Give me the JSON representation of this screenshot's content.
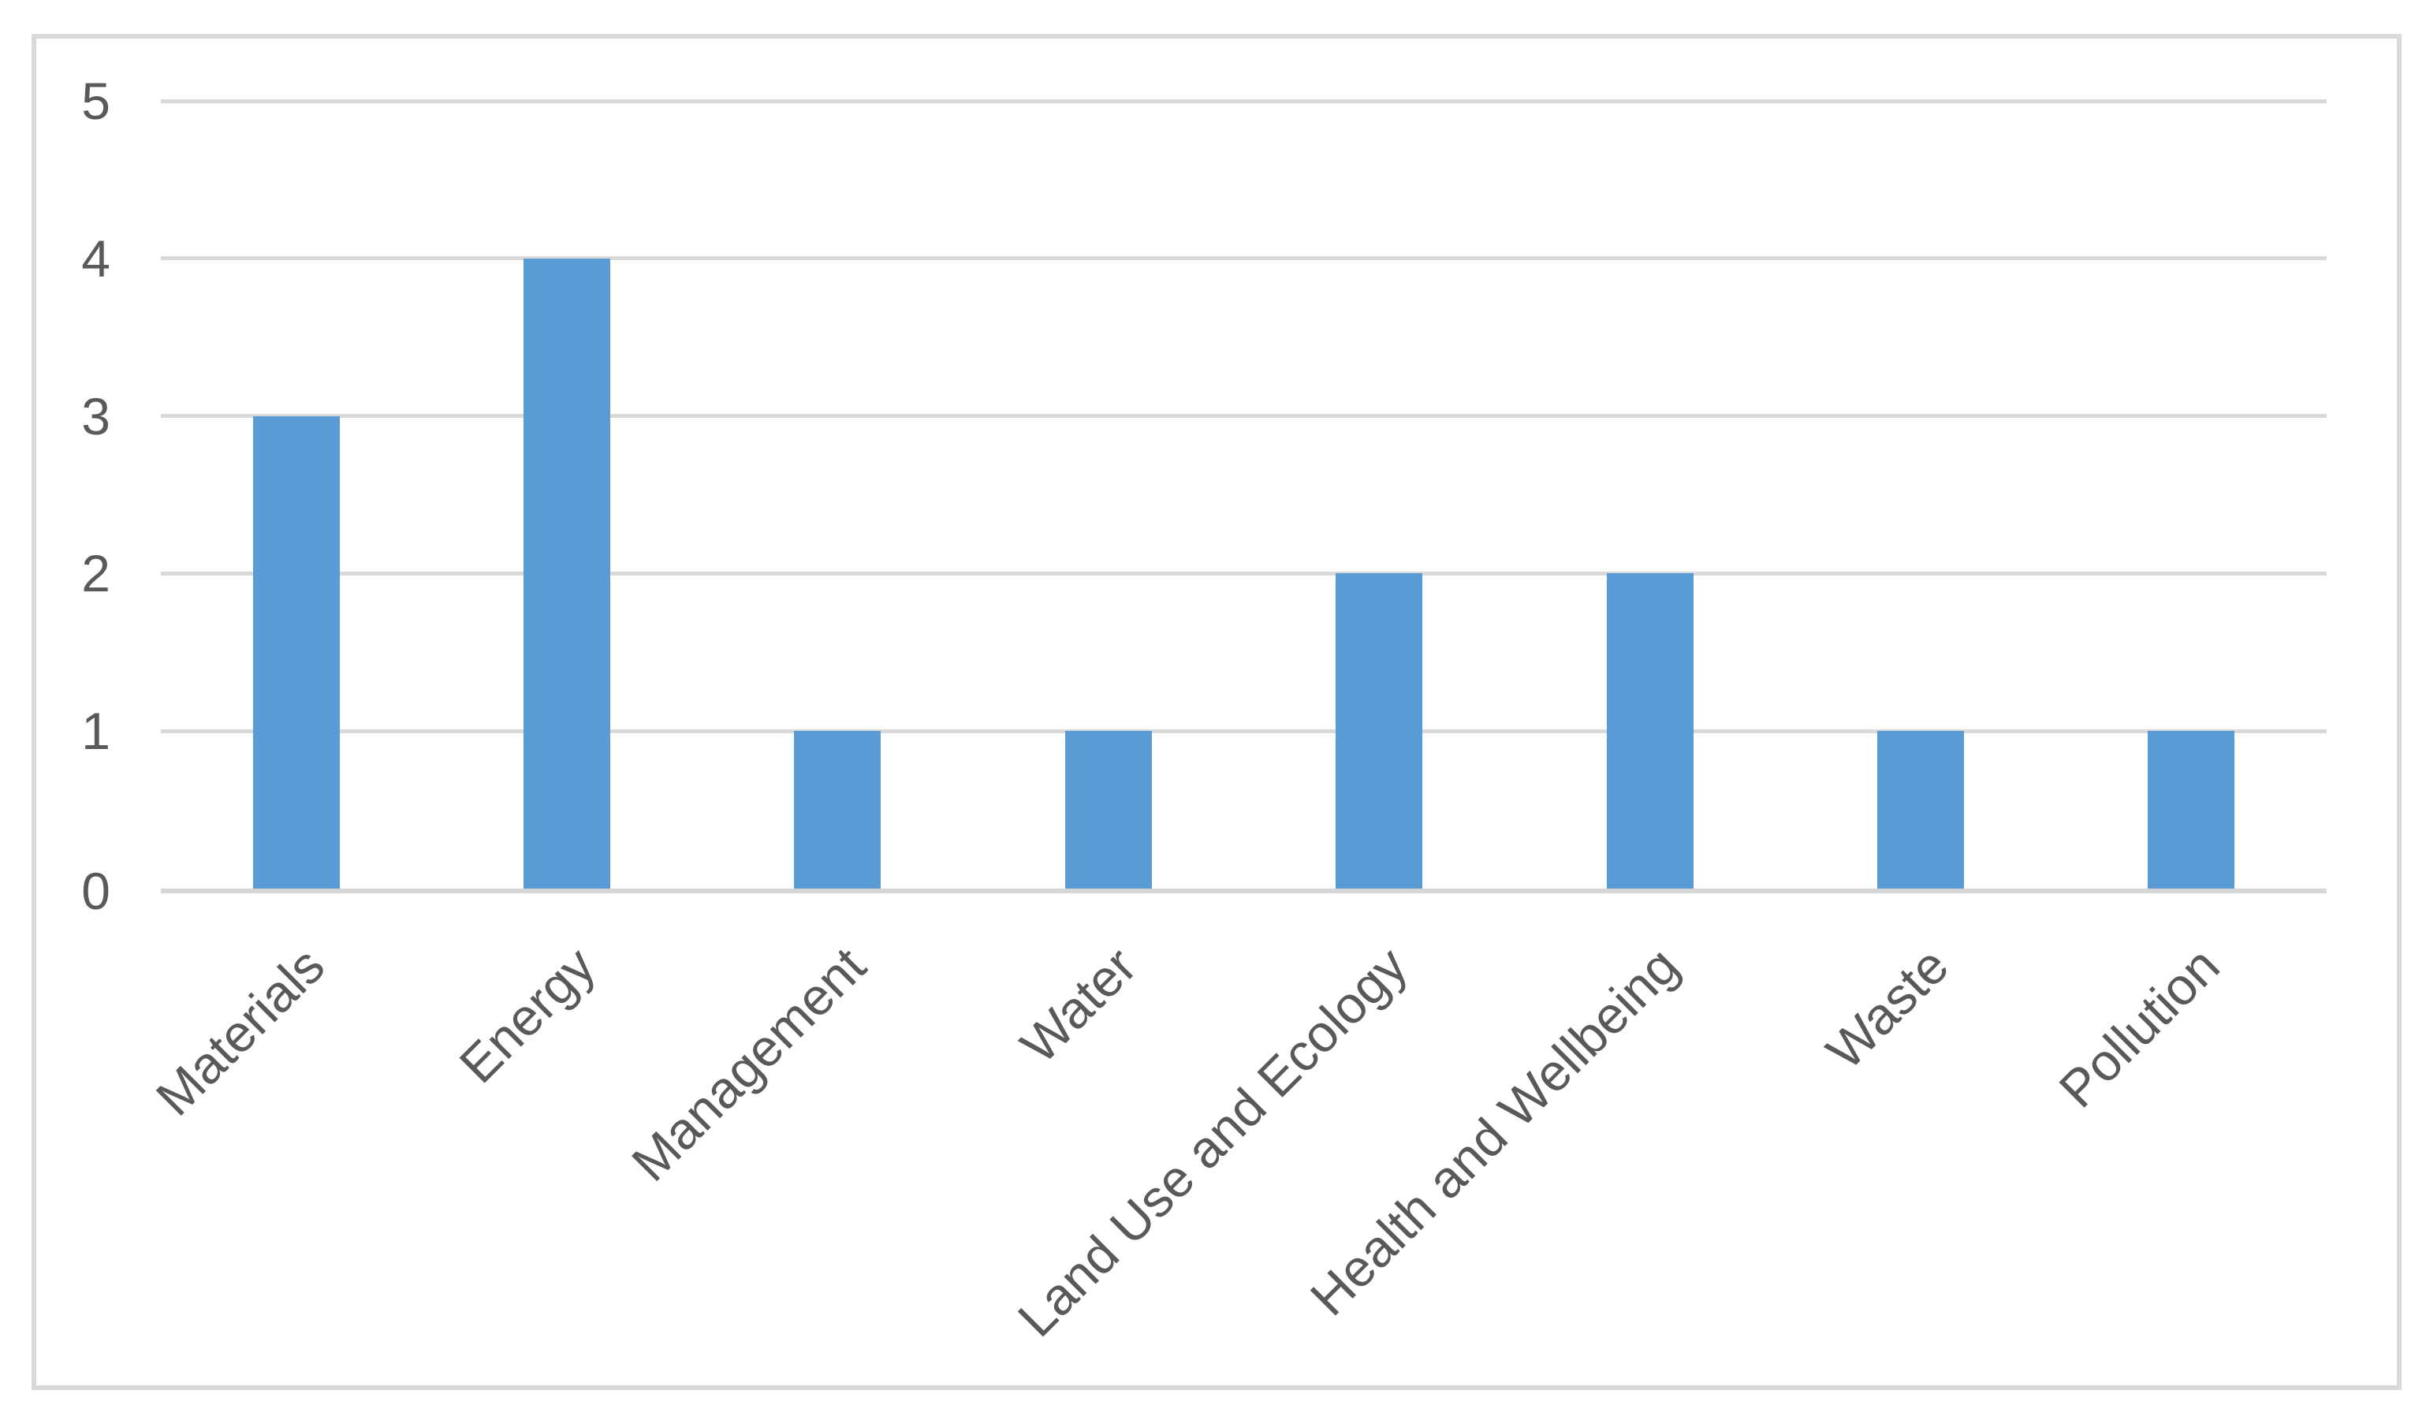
{
  "chart_data": {
    "type": "bar",
    "title": "",
    "xlabel": "",
    "ylabel": "",
    "categories": [
      "Materials",
      "Energy",
      "Management",
      "Water",
      "Land Use and Ecology",
      "Health and Wellbeing",
      "Waste",
      "Pollution"
    ],
    "values": [
      3,
      4,
      1,
      1,
      2,
      2,
      1,
      1
    ],
    "ylim": [
      0,
      5
    ],
    "yticks": [
      0,
      1,
      2,
      3,
      4,
      5
    ],
    "grid": true,
    "legend": false,
    "legend_position": "none",
    "x_label_rotation_deg": 45,
    "colors": {
      "bar": "#5B9BD5",
      "gridline": "#D9D9D9",
      "axis_line": "#D6D6D6",
      "text": "#595959",
      "chart_border": "#D9D9D9",
      "background": "#FFFFFF"
    }
  }
}
